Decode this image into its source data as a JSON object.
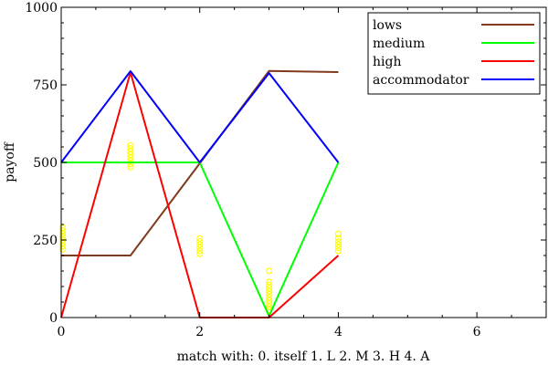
{
  "chart_data": {
    "type": "line",
    "title": "",
    "xlabel": "match with: 0. itself    1. L    2. M    3. H    4. A",
    "ylabel": "payoff",
    "xlim": [
      0,
      7
    ],
    "ylim": [
      0,
      1000
    ],
    "x_ticks": [
      0,
      2,
      4,
      6
    ],
    "y_ticks": [
      0,
      250,
      500,
      750,
      1000
    ],
    "x_tick_labels": [
      "0",
      "2",
      "4",
      "6"
    ],
    "y_tick_labels": [
      "0",
      "250",
      "500",
      "750",
      "1000"
    ],
    "grid": false,
    "legend_position": "top-right",
    "series": [
      {
        "name": "lows",
        "color": "#7f3a1e",
        "x": [
          0,
          1,
          2,
          3,
          4
        ],
        "y": [
          200,
          200,
          497,
          795,
          791
        ]
      },
      {
        "name": "medium",
        "color": "#00ff00",
        "x": [
          0,
          1,
          2,
          3,
          4
        ],
        "y": [
          500,
          500,
          500,
          5,
          500
        ]
      },
      {
        "name": "high",
        "color": "#ff0000",
        "x": [
          0,
          1,
          2,
          3,
          4
        ],
        "y": [
          0,
          790,
          0,
          0,
          200
        ]
      },
      {
        "name": "accommodator",
        "color": "#0000ff",
        "x": [
          0,
          1,
          2,
          3,
          4
        ],
        "y": [
          500,
          794,
          500,
          788,
          500
        ]
      }
    ],
    "scatter": {
      "color": "#ffff00",
      "points": [
        [
          0.02,
          290
        ],
        [
          0.02,
          280
        ],
        [
          0.02,
          270
        ],
        [
          0.02,
          260
        ],
        [
          0.02,
          250
        ],
        [
          0.02,
          240
        ],
        [
          0.02,
          230
        ],
        [
          0.02,
          220
        ],
        [
          1.0,
          555
        ],
        [
          1.0,
          545
        ],
        [
          1.0,
          535
        ],
        [
          1.0,
          525
        ],
        [
          1.0,
          515
        ],
        [
          1.0,
          505
        ],
        [
          1.0,
          495
        ],
        [
          1.0,
          485
        ],
        [
          2.0,
          255
        ],
        [
          2.0,
          245
        ],
        [
          2.0,
          235
        ],
        [
          2.0,
          225
        ],
        [
          2.0,
          215
        ],
        [
          2.0,
          205
        ],
        [
          3.0,
          150
        ],
        [
          3.0,
          115
        ],
        [
          3.0,
          105
        ],
        [
          3.0,
          95
        ],
        [
          3.0,
          85
        ],
        [
          3.0,
          75
        ],
        [
          3.0,
          65
        ],
        [
          3.0,
          55
        ],
        [
          3.0,
          45
        ],
        [
          3.0,
          35
        ],
        [
          3.0,
          25
        ],
        [
          4.0,
          270
        ],
        [
          4.0,
          255
        ],
        [
          4.0,
          245
        ],
        [
          4.0,
          235
        ],
        [
          4.0,
          225
        ],
        [
          4.0,
          215
        ]
      ]
    }
  }
}
